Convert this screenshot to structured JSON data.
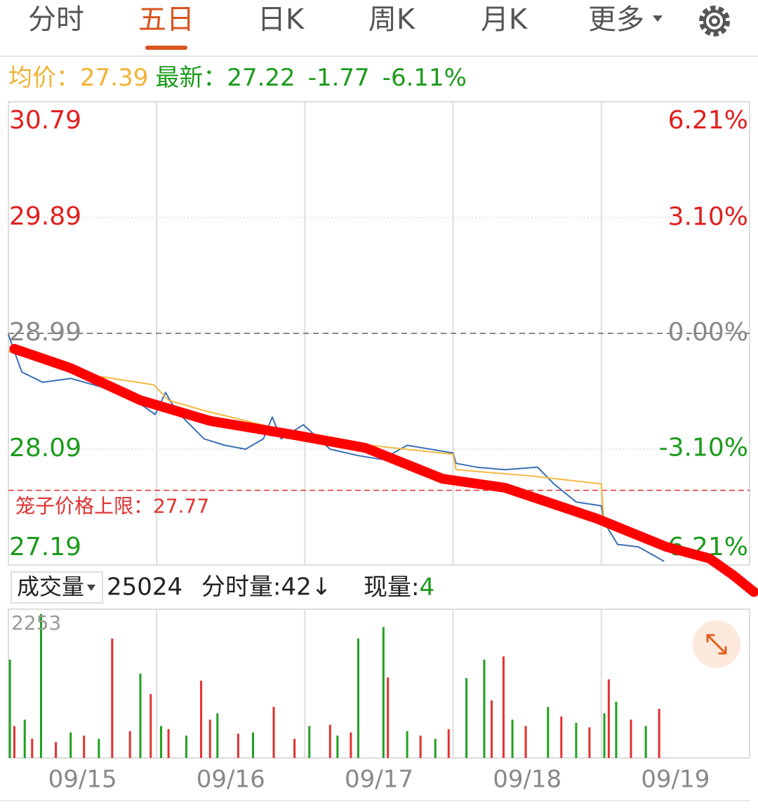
{
  "tabs": [
    "分时",
    "五日",
    "日K",
    "周K",
    "月K",
    "更多"
  ],
  "active_tab": 1,
  "quote": {
    "avg_label": "均价：",
    "avg": "27.39",
    "latest_label": "最新：",
    "latest": "27.22",
    "change": "-1.77",
    "change_pct": "-6.11%"
  },
  "volume_header": {
    "selector": "成交量",
    "total": "25024",
    "minute_label": "分时量:42↓",
    "current_label": "现量:",
    "current": "4"
  },
  "chart_data": [
    {
      "type": "line",
      "xlim": [
        0,
        5
      ],
      "xticks": [
        1,
        2,
        3,
        4
      ],
      "ylim": [
        27.19,
        30.79
      ],
      "yticks": [
        30.79,
        29.89,
        28.99,
        28.09,
        27.19
      ],
      "y2lim": [
        -6.21,
        6.21
      ],
      "y2ticks": [
        {
          "value": 6.21,
          "label": "6.21%"
        },
        {
          "value": 3.1,
          "label": "3.10%"
        },
        {
          "value": 0,
          "label": "0.00%"
        },
        {
          "value": -3.1,
          "label": "-3.10%"
        },
        {
          "value": -6.21,
          "label": "-6.21%"
        }
      ],
      "prev_close": 28.99,
      "ceiling": {
        "label": "笼子价格上限：",
        "value": 27.77,
        "color": "#e03030"
      },
      "series": [
        {
          "color": "#3a6fb5",
          "x": [
            0,
            0.09,
            0.23,
            0.42,
            0.7,
            0.89,
            0.99,
            1.06,
            1.13,
            1.32,
            1.46,
            1.6,
            1.72,
            1.78,
            1.84,
            1.99,
            2.17,
            2.36,
            2.52,
            2.69,
            3.0,
            3.02,
            3.16,
            3.35,
            3.57,
            3.68,
            3.83,
            4.0,
            4.02,
            4.11,
            4.25,
            4.39,
            4.42
          ],
          "values": [
            28.98,
            28.69,
            28.61,
            28.64,
            28.55,
            28.44,
            28.36,
            28.53,
            28.39,
            28.17,
            28.12,
            28.09,
            28.17,
            28.34,
            28.17,
            28.28,
            28.09,
            28.04,
            28.01,
            28.12,
            28.06,
            27.98,
            27.95,
            27.93,
            27.95,
            27.82,
            27.68,
            27.65,
            27.52,
            27.35,
            27.33,
            27.24,
            27.22
          ]
        },
        {
          "color": "#f5b942",
          "x": [
            0,
            0.42,
            0.98,
            1.08,
            1.32,
            1.99,
            2.03,
            3.0,
            3.02,
            3.54,
            4.0,
            4.02,
            4.42
          ],
          "values": [
            28.85,
            28.69,
            28.59,
            28.47,
            28.39,
            28.2,
            28.17,
            28.05,
            27.93,
            27.88,
            27.82,
            27.49,
            27.35
          ]
        },
        {
          "color": "#ff0000",
          "x": [
            0.04,
            0.42,
            0.89,
            1.36,
            1.93,
            2.41,
            2.93,
            3.35,
            3.97,
            4.44,
            4.73,
            4.89,
            5.03
          ],
          "values": [
            28.87,
            28.72,
            28.47,
            28.31,
            28.2,
            28.1,
            27.86,
            27.79,
            27.55,
            27.33,
            27.24,
            27.11,
            26.98
          ]
        }
      ]
    },
    {
      "type": "bar",
      "xlim": [
        0,
        5
      ],
      "xticks": [
        {
          "value": 0.5,
          "label": "09/15"
        },
        {
          "value": 1.5,
          "label": "09/16"
        },
        {
          "value": 2.5,
          "label": "09/17"
        },
        {
          "value": 3.5,
          "label": "09/18"
        },
        {
          "value": 4.5,
          "label": "09/19"
        }
      ],
      "ylim": [
        0,
        2253
      ],
      "yticks": [
        2253
      ],
      "series": [
        {
          "color": "#e53030",
          "x": [
            0.04,
            0.16,
            0.32,
            0.51,
            0.7,
            0.82,
            0.96,
            1.08,
            1.3,
            1.36,
            1.55,
            1.79,
            1.93,
            2.17,
            2.31,
            2.56,
            2.78,
            2.97,
            3.26,
            3.34,
            3.49,
            3.73,
            3.92,
            4.05,
            4.2,
            4.39
          ],
          "values": [
            500,
            300,
            250,
            350,
            1870,
            420,
            1000,
            450,
            1210,
            600,
            380,
            800,
            300,
            520,
            400,
            1260,
            350,
            450,
            900,
            1590,
            500,
            650,
            480,
            1230,
            600,
            770
          ]
        },
        {
          "color": "#1fa01f",
          "x": [
            0.01,
            0.11,
            0.22,
            0.42,
            0.61,
            0.89,
            1.03,
            1.2,
            1.41,
            1.65,
            2.03,
            2.22,
            2.36,
            2.53,
            2.69,
            2.88,
            3.09,
            3.21,
            3.4,
            3.64,
            3.83,
            4.02,
            4.1,
            4.3
          ],
          "values": [
            1540,
            600,
            2253,
            400,
            300,
            1320,
            500,
            350,
            700,
            400,
            500,
            350,
            1870,
            2050,
            420,
            300,
            1250,
            1540,
            600,
            800,
            550,
            700,
            880,
            500
          ]
        }
      ]
    }
  ]
}
